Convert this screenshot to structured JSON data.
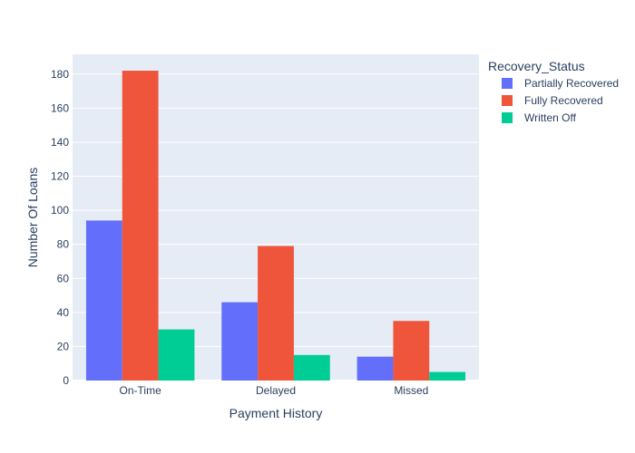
{
  "chart_data": {
    "type": "bar",
    "barmode": "group",
    "categories": [
      "On-Time",
      "Delayed",
      "Missed"
    ],
    "series": [
      {
        "name": "Partially Recovered",
        "values": [
          94,
          46,
          14
        ],
        "color": "#636efa"
      },
      {
        "name": "Fully Recovered",
        "values": [
          182,
          79,
          35
        ],
        "color": "#ef553b"
      },
      {
        "name": "Written Off",
        "values": [
          30,
          15,
          5
        ],
        "color": "#00cc96"
      }
    ],
    "title": "",
    "xlabel": "Payment History",
    "ylabel": "Number Of Loans",
    "ylim": [
      0,
      191.6
    ],
    "yticks": [
      0,
      20,
      40,
      60,
      80,
      100,
      120,
      140,
      160,
      180
    ],
    "grid": true,
    "plot_background": "#e5ecf6",
    "gridline_color": "#ffffff",
    "legend": {
      "title": "Recovery_Status",
      "placement": "top-right-outside"
    }
  }
}
